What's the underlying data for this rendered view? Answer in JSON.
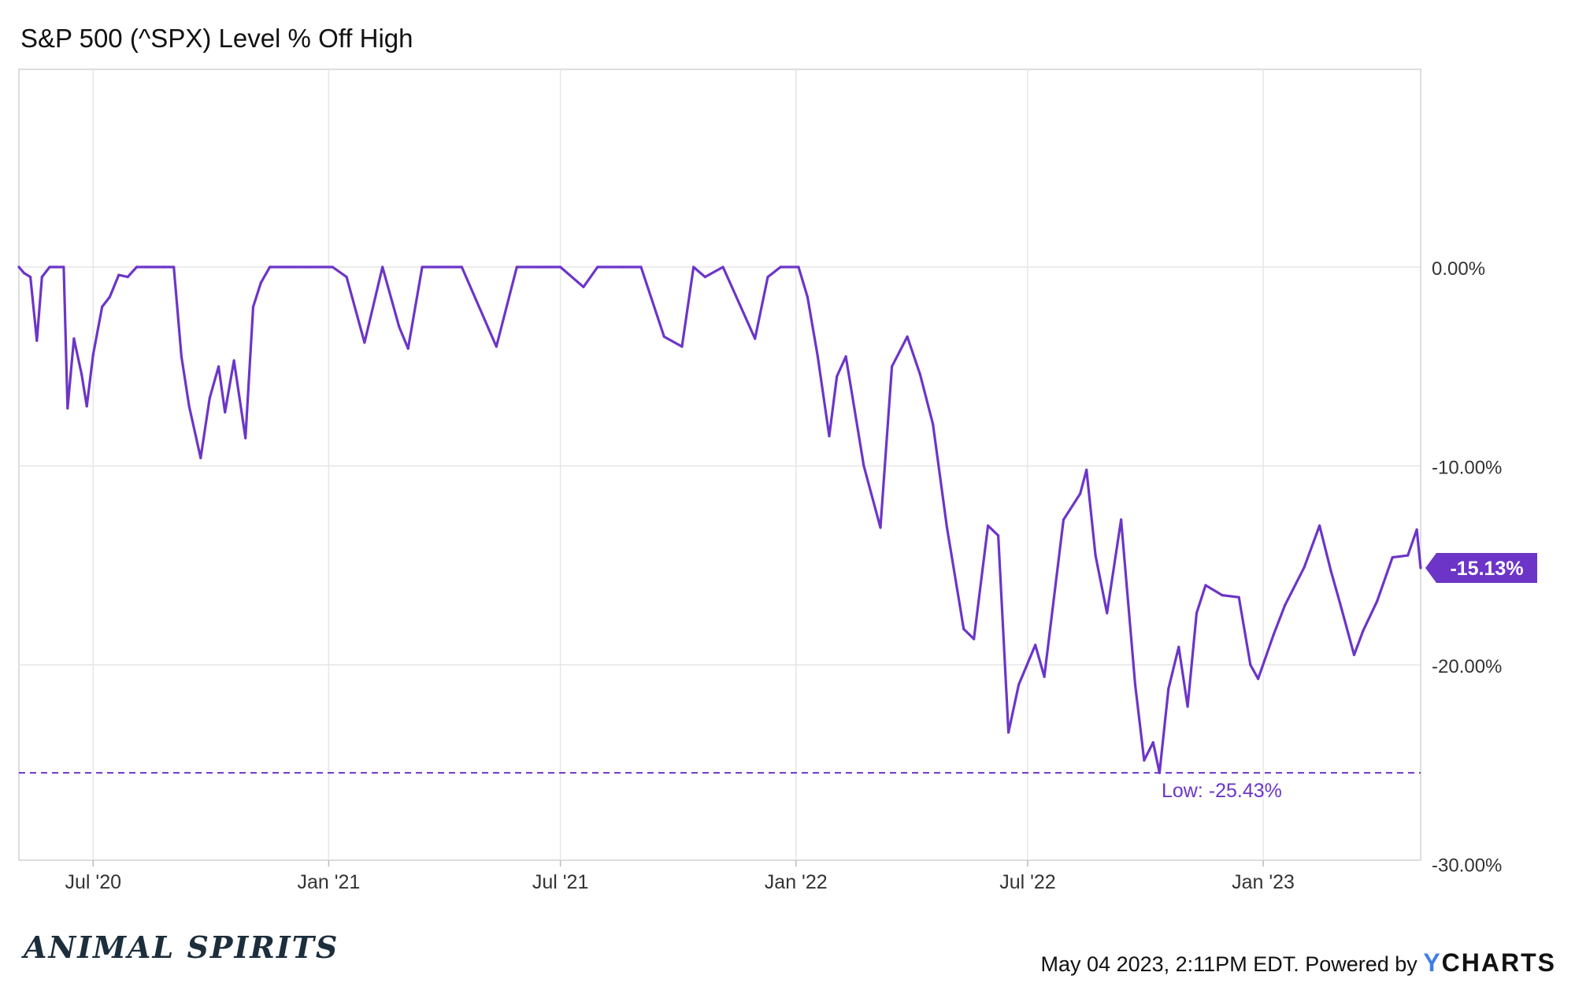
{
  "chart_data": {
    "type": "line",
    "title": "S&P 500 (^SPX) Level % Off High",
    "ylim": [
      -30,
      0
    ],
    "y_ticks": [
      "0.00%",
      "-10.00%",
      "-20.00%",
      "-30.00%"
    ],
    "y_tick_values": [
      0,
      -10,
      -20,
      -30
    ],
    "x_ticks": [
      "Jul '20",
      "Jan '21",
      "Jul '21",
      "Jan '22",
      "Jul '22",
      "Jan '23"
    ],
    "x_tick_values": [
      "2020-07-01",
      "2021-01-01",
      "2021-07-01",
      "2022-01-01",
      "2022-07-01",
      "2023-01-01"
    ],
    "x_range": [
      "2020-05-04",
      "2023-05-04"
    ],
    "grid": true,
    "series_color": "#6c35c8",
    "series": [
      {
        "x": [
          "2020-05-04",
          "2020-05-08",
          "2020-05-13",
          "2020-05-18",
          "2020-05-22",
          "2020-05-28",
          "2020-06-02",
          "2020-06-08",
          "2020-06-11",
          "2020-06-16",
          "2020-06-22",
          "2020-06-26",
          "2020-07-01",
          "2020-07-08",
          "2020-07-14",
          "2020-07-21",
          "2020-07-28",
          "2020-08-04",
          "2020-08-11",
          "2020-08-18",
          "2020-08-25",
          "2020-09-02",
          "2020-09-08",
          "2020-09-14",
          "2020-09-23",
          "2020-09-30",
          "2020-10-07",
          "2020-10-12",
          "2020-10-19",
          "2020-10-28",
          "2020-11-03",
          "2020-11-09",
          "2020-11-16",
          "2020-11-30",
          "2020-12-15",
          "2021-01-04",
          "2021-01-15",
          "2021-01-29",
          "2021-02-12",
          "2021-02-25",
          "2021-03-04",
          "2021-03-15",
          "2021-03-25",
          "2021-04-15",
          "2021-05-12",
          "2021-05-28",
          "2021-06-18",
          "2021-07-01",
          "2021-07-19",
          "2021-07-30",
          "2021-08-19",
          "2021-09-02",
          "2021-09-20",
          "2021-10-04",
          "2021-10-13",
          "2021-10-22",
          "2021-11-05",
          "2021-11-30",
          "2021-12-10",
          "2021-12-20",
          "2022-01-03",
          "2022-01-10",
          "2022-01-18",
          "2022-01-27",
          "2022-02-02",
          "2022-02-09",
          "2022-02-23",
          "2022-03-08",
          "2022-03-17",
          "2022-03-29",
          "2022-04-08",
          "2022-04-18",
          "2022-04-29",
          "2022-05-09",
          "2022-05-12",
          "2022-05-20",
          "2022-05-31",
          "2022-06-08",
          "2022-06-16",
          "2022-06-24",
          "2022-07-07",
          "2022-07-14",
          "2022-07-29",
          "2022-08-11",
          "2022-08-16",
          "2022-08-23",
          "2022-09-01",
          "2022-09-12",
          "2022-09-23",
          "2022-09-30",
          "2022-10-07",
          "2022-10-12",
          "2022-10-19",
          "2022-10-27",
          "2022-11-03",
          "2022-11-10",
          "2022-11-17",
          "2022-11-30",
          "2022-12-13",
          "2022-12-22",
          "2022-12-28",
          "2023-01-09",
          "2023-01-18",
          "2023-02-02",
          "2023-02-14",
          "2023-02-23",
          "2023-03-02",
          "2023-03-13",
          "2023-03-20",
          "2023-03-31",
          "2023-04-12",
          "2023-04-24",
          "2023-05-01",
          "2023-05-04"
        ],
        "values": [
          0,
          -0.3,
          -0.5,
          -3.7,
          -0.5,
          0,
          0,
          0,
          -7.1,
          -3.6,
          -5.4,
          -7,
          -4.4,
          -2,
          -1.5,
          -0.4,
          -0.5,
          0,
          0,
          0,
          0,
          0,
          -4.5,
          -7,
          -9.6,
          -6.6,
          -5,
          -7.3,
          -4.7,
          -8.6,
          -2,
          -0.8,
          0,
          0,
          0,
          0,
          -0.5,
          -3.8,
          0,
          -3,
          -4.1,
          0,
          0,
          0,
          -4,
          0,
          0,
          0,
          -1,
          0,
          0,
          0,
          -3.5,
          -4,
          0,
          -0.5,
          0,
          -3.6,
          -0.5,
          0,
          0,
          -1.5,
          -4.5,
          -8.5,
          -5.5,
          -4.5,
          -10,
          -13.1,
          -5,
          -3.5,
          -5.4,
          -7.9,
          -13.1,
          -17,
          -18.2,
          -18.7,
          -13,
          -13.5,
          -23.4,
          -21,
          -19,
          -20.6,
          -12.7,
          -11.4,
          -10.2,
          -14.5,
          -17.4,
          -12.7,
          -21,
          -24.8,
          -23.9,
          -25.43,
          -21.2,
          -19.1,
          -22.1,
          -17.4,
          -16,
          -16.5,
          -16.6,
          -20,
          -20.7,
          -18.5,
          -17,
          -15.1,
          -13,
          -15.3,
          -16.9,
          -19.5,
          -18.3,
          -16.8,
          -14.6,
          -14.5,
          -13.2,
          -15.13
        ]
      }
    ],
    "low_label": "Low: -25.43%",
    "low_value": -25.43,
    "last_label": "-15.13%",
    "last_value": -15.13
  },
  "footer": {
    "logo_text": "ANIMAL SPIRITS",
    "timestamp": "May 04 2023, 2:11PM EDT.",
    "powered_by": "Powered by",
    "brand_y": "Y",
    "brand_rest": "CHARTS"
  },
  "colors": {
    "line": "#6c35c8",
    "grid": "#e6e6e6",
    "axis_text": "#333333",
    "brand_accent": "#3f7fe6"
  }
}
